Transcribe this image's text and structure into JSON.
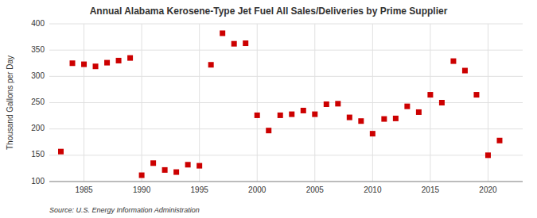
{
  "chart_data": {
    "type": "scatter",
    "title": "Annual Alabama Kerosene-Type Jet Fuel All Sales/Deliveries by Prime Supplier",
    "y_label": "Thousand Gallons per Day",
    "source": "Source: U.S. Energy Information Administration",
    "x": [
      1983,
      1984,
      1985,
      1986,
      1987,
      1988,
      1989,
      1990,
      1991,
      1992,
      1993,
      1994,
      1995,
      1996,
      1997,
      1998,
      1999,
      2000,
      2001,
      2002,
      2003,
      2004,
      2005,
      2006,
      2007,
      2008,
      2009,
      2010,
      2011,
      2012,
      2013,
      2014,
      2015,
      2016,
      2017,
      2018,
      2019,
      2020,
      2021
    ],
    "values": [
      157,
      325,
      323,
      319,
      326,
      330,
      335,
      112,
      135,
      122,
      118,
      132,
      130,
      322,
      382,
      362,
      363,
      226,
      197,
      226,
      228,
      235,
      228,
      247,
      248,
      222,
      215,
      191,
      219,
      220,
      243,
      232,
      265,
      250,
      329,
      311,
      265,
      150,
      178
    ],
    "color": "#cc0000",
    "marker": "square",
    "xlim": [
      1982,
      2023
    ],
    "ylim": [
      100,
      400
    ],
    "xticks": [
      1985,
      1990,
      1995,
      2000,
      2005,
      2010,
      2015,
      2020
    ],
    "yticks": [
      100,
      150,
      200,
      250,
      300,
      350,
      400
    ],
    "grid": true
  }
}
